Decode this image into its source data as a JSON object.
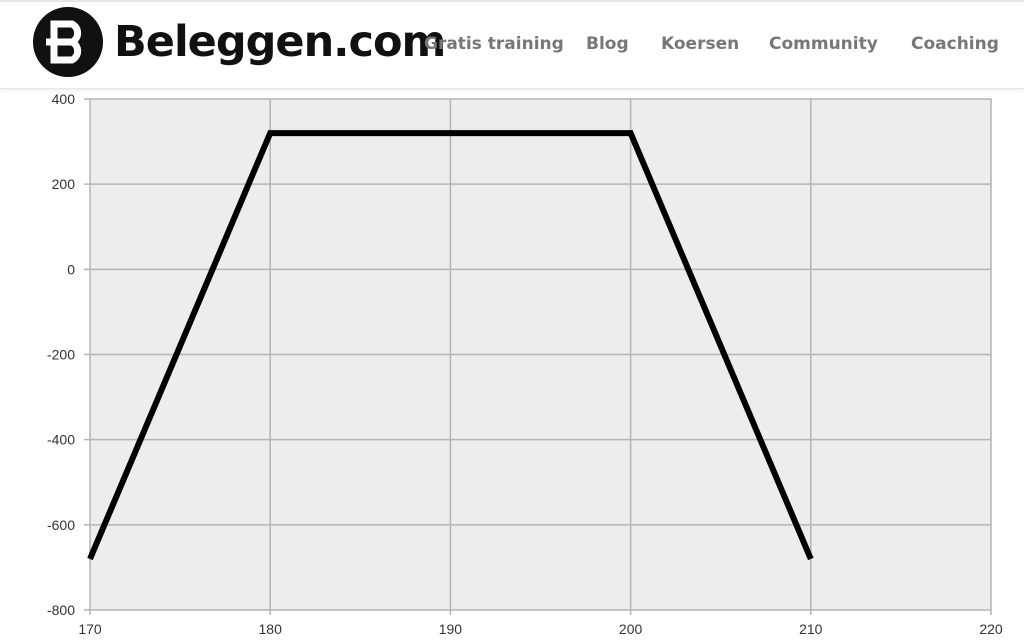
{
  "header": {
    "logo_text": "Beleggen.com",
    "nav": [
      "Gratis training",
      "Blog",
      "Koersen",
      "Community",
      "Coaching"
    ]
  },
  "chart_data": {
    "type": "line",
    "title": "",
    "xlabel": "",
    "ylabel": "",
    "xlim": [
      170,
      220
    ],
    "ylim": [
      -800,
      400
    ],
    "x_ticks": [
      170,
      180,
      190,
      200,
      210,
      220
    ],
    "y_ticks": [
      400,
      200,
      0,
      -200,
      -400,
      -600,
      -800
    ],
    "grid": true,
    "background": "#ededed",
    "line_color": "#000000",
    "series": [
      {
        "x": [
          170,
          180,
          200,
          210
        ],
        "y": [
          -680,
          320,
          320,
          -680
        ]
      }
    ]
  }
}
